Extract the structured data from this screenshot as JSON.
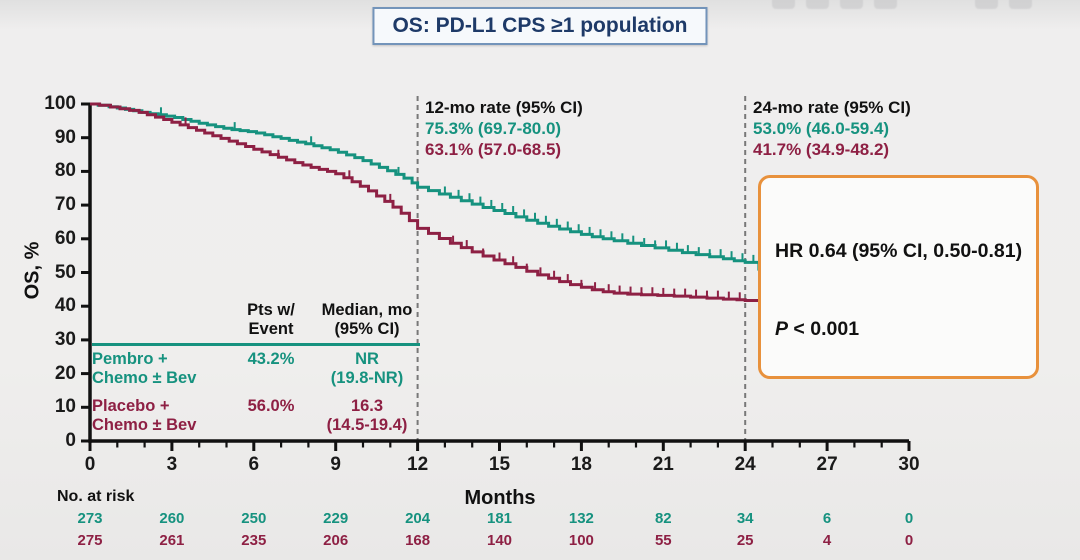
{
  "slide": {
    "title": "OS: PD-L1 CPS ≥1 population",
    "accent_navy": "#1e3a68",
    "accent_orange": "#e8913c",
    "teal": "#16927f",
    "maroon": "#8e2044"
  },
  "annotations": {
    "rate12": {
      "title": "12-mo rate (95% CI)",
      "pembro": "75.3% (69.7-80.0)",
      "placebo": "63.1% (57.0-68.5)"
    },
    "rate24": {
      "title": "24-mo rate (95% CI)",
      "pembro": "53.0% (46.0-59.4)",
      "placebo": "41.7% (34.9-48.2)"
    }
  },
  "hr_box": {
    "line1": "HR 0.64 (95% CI, 0.50-0.81)",
    "p_italic": "P",
    "p_rest": " < 0.001"
  },
  "summary_table": {
    "col1_header": [
      "Pts w/",
      "Event"
    ],
    "col2_header": [
      "Median, mo",
      "(95% CI)"
    ],
    "rows": [
      {
        "group1": "Pembro +",
        "group2": "Chemo ± Bev",
        "pts_w_event": "43.2%",
        "median1": "NR",
        "median2": "(19.8-NR)"
      },
      {
        "group1": "Placebo +",
        "group2": "Chemo ± Bev",
        "pts_w_event": "56.0%",
        "median1": "16.3",
        "median2": "(14.5-19.4)"
      }
    ]
  },
  "axes": {
    "y_label": "OS, %",
    "x_label": "Months"
  },
  "risk_table": {
    "label": "No. at risk",
    "rows": [
      {
        "name": "Pembro + Chemo ± Bev",
        "color": "#16927f",
        "values": [
          "273",
          "260",
          "250",
          "229",
          "204",
          "181",
          "132",
          "82",
          "34",
          "6",
          "0"
        ]
      },
      {
        "name": "Placebo + Chemo ± Bev",
        "color": "#8e2044",
        "values": [
          "275",
          "261",
          "235",
          "206",
          "168",
          "140",
          "100",
          "55",
          "25",
          "4",
          "0"
        ]
      }
    ]
  },
  "chart_data": {
    "type": "line",
    "subtype": "kaplan-meier",
    "title": "OS: PD-L1 CPS ≥1 population",
    "xlabel": "Months",
    "ylabel": "OS, %",
    "xlim": [
      0,
      30
    ],
    "ylim": [
      0,
      100
    ],
    "x_major_ticks": [
      0,
      3,
      6,
      9,
      12,
      15,
      18,
      21,
      24,
      27,
      30
    ],
    "x_minor_step": 1,
    "y_ticks": [
      0,
      10,
      20,
      30,
      40,
      50,
      60,
      70,
      80,
      90,
      100
    ],
    "reference_lines_x": [
      12,
      24
    ],
    "grid": false,
    "series": [
      {
        "name": "Pembro + Chemo ± Bev",
        "color": "#16927f",
        "points": [
          [
            0,
            100
          ],
          [
            0.3,
            99.6
          ],
          [
            0.7,
            99.2
          ],
          [
            1,
            98.8
          ],
          [
            1.3,
            98.4
          ],
          [
            1.6,
            98
          ],
          [
            1.9,
            97.5
          ],
          [
            2.2,
            97.1
          ],
          [
            2.5,
            96.8
          ],
          [
            2.8,
            96.4
          ],
          [
            3.1,
            96
          ],
          [
            3.4,
            95.4
          ],
          [
            3.7,
            94.9
          ],
          [
            4,
            94.3
          ],
          [
            4.3,
            93.8
          ],
          [
            4.6,
            93.3
          ],
          [
            4.9,
            92.8
          ],
          [
            5.2,
            92.4
          ],
          [
            5.5,
            92.1
          ],
          [
            5.8,
            91.8
          ],
          [
            6.1,
            91.4
          ],
          [
            6.4,
            90.9
          ],
          [
            6.7,
            90.3
          ],
          [
            7,
            89.8
          ],
          [
            7.3,
            89.2
          ],
          [
            7.6,
            88.7
          ],
          [
            7.9,
            88.2
          ],
          [
            8.2,
            87.6
          ],
          [
            8.5,
            87
          ],
          [
            8.8,
            86.4
          ],
          [
            9.1,
            85.7
          ],
          [
            9.4,
            84.9
          ],
          [
            9.7,
            84.1
          ],
          [
            10,
            83.2
          ],
          [
            10.3,
            82.2
          ],
          [
            10.6,
            81.2
          ],
          [
            10.9,
            80.2
          ],
          [
            11.2,
            79.1
          ],
          [
            11.5,
            78
          ],
          [
            11.8,
            76.6
          ],
          [
            12,
            75.3
          ],
          [
            12.4,
            74.3
          ],
          [
            12.8,
            73.3
          ],
          [
            13.2,
            72.3
          ],
          [
            13.6,
            71.3
          ],
          [
            14,
            70.3
          ],
          [
            14.4,
            69.3
          ],
          [
            14.8,
            68.4
          ],
          [
            15.2,
            67.5
          ],
          [
            15.6,
            66.5
          ],
          [
            16,
            65.5
          ],
          [
            16.4,
            64.6
          ],
          [
            16.8,
            63.7
          ],
          [
            17.2,
            62.9
          ],
          [
            17.6,
            62.1
          ],
          [
            18,
            61.3
          ],
          [
            18.4,
            60.6
          ],
          [
            18.8,
            60
          ],
          [
            19.2,
            59.4
          ],
          [
            19.7,
            58.7
          ],
          [
            20.2,
            58
          ],
          [
            20.7,
            57.3
          ],
          [
            21.2,
            56.6
          ],
          [
            21.7,
            55.9
          ],
          [
            22.2,
            55.3
          ],
          [
            22.7,
            54.7
          ],
          [
            23.2,
            54.1
          ],
          [
            23.6,
            53.5
          ],
          [
            24,
            53
          ],
          [
            24.5,
            51
          ],
          [
            28.7,
            51
          ]
        ],
        "censor_marks": [
          2.6,
          5.3,
          8.1,
          11.3,
          13,
          13.5,
          13.9,
          14.3,
          14.7,
          15.1,
          15.5,
          15.9,
          16.3,
          16.7,
          17.1,
          17.5,
          17.9,
          18.3,
          18.7,
          19.1,
          19.5,
          19.9,
          20.3,
          20.7,
          21.1,
          21.5,
          21.9,
          22.3,
          22.7,
          23.1,
          23.5,
          23.9,
          24.3,
          24.8,
          25.2,
          25.6,
          26,
          26.5,
          27,
          27.6,
          28.2
        ]
      },
      {
        "name": "Placebo + Chemo ± Bev",
        "color": "#8e2044",
        "points": [
          [
            0,
            100
          ],
          [
            0.35,
            99.6
          ],
          [
            0.75,
            99.1
          ],
          [
            1.1,
            98.6
          ],
          [
            1.45,
            98.1
          ],
          [
            1.8,
            97.5
          ],
          [
            2.1,
            96.8
          ],
          [
            2.4,
            96.1
          ],
          [
            2.7,
            95.4
          ],
          [
            3,
            94.6
          ],
          [
            3.3,
            93.8
          ],
          [
            3.6,
            93
          ],
          [
            3.9,
            92.2
          ],
          [
            4.2,
            91.4
          ],
          [
            4.5,
            90.6
          ],
          [
            4.8,
            89.8
          ],
          [
            5.1,
            89
          ],
          [
            5.4,
            88.2
          ],
          [
            5.7,
            87.4
          ],
          [
            6,
            86.6
          ],
          [
            6.3,
            85.8
          ],
          [
            6.6,
            85
          ],
          [
            6.9,
            84.2
          ],
          [
            7.2,
            83.4
          ],
          [
            7.5,
            82.6
          ],
          [
            7.8,
            81.9
          ],
          [
            8.1,
            81.2
          ],
          [
            8.4,
            80.6
          ],
          [
            8.7,
            80
          ],
          [
            9,
            79.3
          ],
          [
            9.3,
            78.1
          ],
          [
            9.6,
            76.9
          ],
          [
            9.9,
            75.6
          ],
          [
            10.2,
            74.2
          ],
          [
            10.5,
            72.7
          ],
          [
            10.8,
            71.1
          ],
          [
            11.1,
            69.4
          ],
          [
            11.4,
            67.6
          ],
          [
            11.7,
            65.4
          ],
          [
            12,
            63.1
          ],
          [
            12.4,
            61.6
          ],
          [
            12.8,
            60.1
          ],
          [
            13.2,
            58.7
          ],
          [
            13.6,
            57.4
          ],
          [
            14,
            56.1
          ],
          [
            14.4,
            54.9
          ],
          [
            14.8,
            53.7
          ],
          [
            15.2,
            52.6
          ],
          [
            15.6,
            51.5
          ],
          [
            16,
            50.4
          ],
          [
            16.4,
            49.3
          ],
          [
            16.8,
            48.3
          ],
          [
            17.2,
            47.3
          ],
          [
            17.6,
            46.4
          ],
          [
            18,
            45.6
          ],
          [
            18.4,
            44.9
          ],
          [
            18.8,
            44.3
          ],
          [
            19.2,
            43.9
          ],
          [
            19.7,
            43.6
          ],
          [
            20.2,
            43.4
          ],
          [
            20.8,
            43.2
          ],
          [
            21.4,
            43
          ],
          [
            22,
            42.7
          ],
          [
            22.6,
            42.4
          ],
          [
            23.2,
            42.1
          ],
          [
            23.7,
            41.9
          ],
          [
            24,
            41.7
          ],
          [
            24.7,
            40.2
          ],
          [
            25.1,
            38.3
          ],
          [
            25.5,
            36.4
          ],
          [
            25.9,
            34.3
          ],
          [
            26.3,
            32.2
          ],
          [
            26.7,
            31
          ],
          [
            28.7,
            31
          ]
        ],
        "censor_marks": [
          3.5,
          6.9,
          9.5,
          11,
          13.3,
          13.8,
          14.4,
          15,
          15.5,
          16,
          16.5,
          17,
          17.5,
          18,
          18.5,
          19,
          19.4,
          19.8,
          20.2,
          20.6,
          21,
          21.4,
          21.8,
          22.2,
          22.6,
          23,
          23.4,
          23.8,
          27.2,
          27.9
        ]
      }
    ],
    "twelve_mo_rates": {
      "pembro": 75.3,
      "placebo": 63.1
    },
    "twentyfour_mo_rates": {
      "pembro": 53.0,
      "placebo": 41.7
    },
    "no_at_risk_months": [
      0,
      3,
      6,
      9,
      12,
      15,
      18,
      21,
      24,
      27,
      30
    ]
  }
}
